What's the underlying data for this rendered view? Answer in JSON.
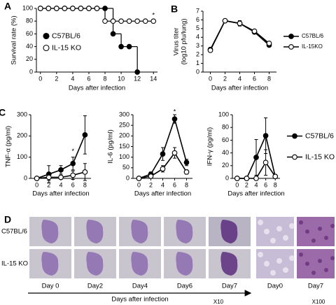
{
  "chart_data": [
    {
      "type": "step",
      "panel_label": "A",
      "ylabel": "Survival rate (%)",
      "xlabel": "Days after infection",
      "x": [
        0,
        1,
        2,
        3,
        4,
        5,
        6,
        7,
        8,
        9,
        10,
        11,
        12,
        13,
        14
      ],
      "xlim": [
        -0.5,
        14.5
      ],
      "xticks": [
        0,
        2,
        4,
        6,
        8,
        10,
        12,
        14
      ],
      "ylim": [
        0,
        100
      ],
      "yticks": [
        0,
        20,
        40,
        60,
        80,
        100
      ],
      "legend": "center-left",
      "annotation": {
        "text": "*",
        "x": 14
      },
      "series": [
        {
          "name": "C57BL/6",
          "color": "#000000",
          "fill": "#000000",
          "values": [
            100,
            100,
            100,
            100,
            100,
            100,
            100,
            100,
            100,
            60,
            40,
            40,
            0,
            null,
            null
          ]
        },
        {
          "name": "IL-15 KO",
          "color": "#000000",
          "fill": "#ffffff",
          "values": [
            100,
            100,
            100,
            100,
            100,
            100,
            100,
            100,
            80,
            80,
            80,
            80,
            80,
            80,
            80
          ]
        }
      ]
    },
    {
      "type": "line",
      "panel_label": "B",
      "ylabel": [
        "Virus titer",
        "(log10 pfu/lung)"
      ],
      "xlabel": "Days after infection",
      "x": [
        0,
        2,
        4,
        6,
        8
      ],
      "xlim": [
        -1,
        9
      ],
      "xticks": [
        0,
        2,
        4,
        6,
        8
      ],
      "ylim": [
        0,
        7
      ],
      "yticks": [
        0,
        1,
        2,
        3,
        4,
        5,
        6,
        7
      ],
      "legend": "right",
      "series": [
        {
          "name": "C57BL/6",
          "color": "#000000",
          "fill": "#000000",
          "values": [
            2.6,
            5.9,
            5.6,
            4.6,
            3.1
          ],
          "errors": [
            0.2,
            0.2,
            0.3,
            0.2,
            0.2
          ]
        },
        {
          "name": "IL-15KO",
          "color": "#000000",
          "fill": "#ffffff",
          "values": [
            2.5,
            5.9,
            5.6,
            4.7,
            3.3
          ],
          "errors": [
            0.2,
            0.2,
            0.3,
            0.2,
            0.2
          ]
        }
      ]
    },
    {
      "type": "line",
      "panel_label": "C",
      "ylabel": "TNF-α (pg/ml)",
      "xlabel": "Days after infection",
      "x": [
        0,
        2,
        4,
        6,
        8
      ],
      "xlim": [
        -1,
        9
      ],
      "xticks": [
        0,
        2,
        4,
        6,
        8
      ],
      "ylim": [
        0,
        300
      ],
      "yticks": [
        0,
        100,
        200,
        300
      ],
      "annotation": {
        "text": "*",
        "x": 6
      },
      "series": [
        {
          "name": "C57BL/6",
          "color": "#000000",
          "fill": "#000000",
          "values": [
            0,
            20,
            40,
            70,
            205
          ],
          "errors": [
            0,
            40,
            20,
            30,
            90
          ]
        },
        {
          "name": "IL-15 KO",
          "color": "#000000",
          "fill": "#ffffff",
          "values": [
            0,
            5,
            5,
            15,
            30
          ],
          "errors": [
            0,
            15,
            10,
            20,
            40
          ]
        }
      ]
    },
    {
      "type": "line",
      "ylabel": "IL-6 (pg/ml)",
      "xlabel": "Days after infection",
      "x": [
        0,
        2,
        4,
        6,
        8
      ],
      "xlim": [
        -1,
        9
      ],
      "xticks": [
        0,
        2,
        4,
        6,
        8
      ],
      "ylim": [
        0,
        300
      ],
      "yticks": [
        0,
        50,
        100,
        150,
        200,
        250,
        300
      ],
      "annotation": {
        "text": "*",
        "x": 6
      },
      "series": [
        {
          "name": "C57BL/6",
          "color": "#000000",
          "fill": "#000000",
          "values": [
            0,
            20,
            115,
            280,
            75
          ],
          "errors": [
            0,
            10,
            30,
            20,
            15
          ]
        },
        {
          "name": "IL-15 KO",
          "color": "#000000",
          "fill": "#ffffff",
          "values": [
            0,
            10,
            45,
            120,
            30
          ],
          "errors": [
            0,
            5,
            15,
            25,
            10
          ]
        }
      ]
    },
    {
      "type": "line",
      "ylabel": "IFN-γ (pg/ml)",
      "xlabel": "Days after infection",
      "x": [
        0,
        2,
        4,
        6,
        8
      ],
      "xlim": [
        -1,
        9
      ],
      "xticks": [
        0,
        2,
        4,
        6,
        8
      ],
      "ylim": [
        0,
        100
      ],
      "yticks": [
        0,
        20,
        40,
        60,
        80,
        100
      ],
      "legend": "right",
      "series": [
        {
          "name": "C57BL/6",
          "color": "#000000",
          "fill": "#000000",
          "values": [
            0,
            0,
            33,
            67,
            3
          ],
          "errors": [
            0,
            0,
            28,
            28,
            2
          ]
        },
        {
          "name": "IL-15 KO",
          "color": "#000000",
          "fill": "#ffffff",
          "values": [
            0,
            0,
            0,
            25,
            3
          ],
          "errors": [
            0,
            0,
            2,
            20,
            2
          ]
        }
      ]
    }
  ],
  "panel_d": {
    "label": "D",
    "rows": [
      "C57BL/6",
      "IL-15 KO"
    ],
    "days": [
      "Day 0",
      "Day2",
      "Day4",
      "Day6",
      "Day7"
    ],
    "axis_label": "Days after infection",
    "magnification": "X10",
    "zoom_days": [
      "Day0",
      "Day7"
    ],
    "zoom_magnification": "X100"
  }
}
